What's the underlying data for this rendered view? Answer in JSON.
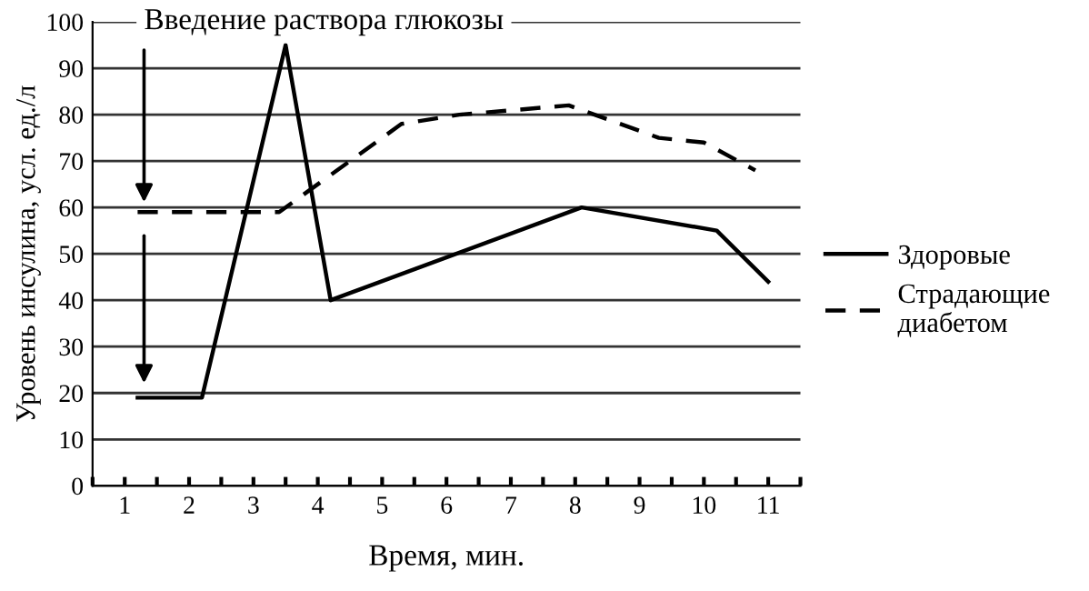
{
  "chart_data": {
    "type": "line",
    "xlabel": "Время, мин.",
    "ylabel": "Уровень инсулина, усл. ед./л",
    "xlim": [
      0.5,
      11.5
    ],
    "ylim": [
      0,
      100
    ],
    "yticks": [
      0,
      10,
      20,
      30,
      40,
      50,
      60,
      70,
      80,
      90,
      100
    ],
    "xticks": [
      {
        "value": 0.5,
        "label": null
      },
      1,
      {
        "value": 1.5,
        "label": null
      },
      2,
      {
        "value": 2.5,
        "label": null
      },
      3,
      {
        "value": 3.5,
        "label": null
      },
      4,
      {
        "value": 4.5,
        "label": null
      },
      5,
      {
        "value": 5.5,
        "label": null
      },
      6,
      {
        "value": 6.5,
        "label": null
      },
      7,
      {
        "value": 7.5,
        "label": null
      },
      8,
      {
        "value": 8.5,
        "label": null
      },
      9,
      {
        "value": 9.5,
        "label": null
      },
      10,
      {
        "value": 10.5,
        "label": null
      },
      11,
      {
        "value": 11.5,
        "label": null
      }
    ],
    "grid": "y",
    "legend": "right",
    "marker": "none",
    "annotations": [
      {
        "text": "Введение раствора глюкозы",
        "x": 1.3,
        "y": 59
      }
    ],
    "series": [
      {
        "name": "Здоровые",
        "color": "#000000",
        "line_style": "solid",
        "x": [
          1.2,
          2.2,
          3.5,
          4.2,
          8.1,
          10.2,
          11.0
        ],
        "values": [
          19,
          19,
          95,
          40,
          60,
          55,
          44
        ]
      },
      {
        "name": "Страдающие диабетом",
        "color": "#000000",
        "line_style": "dashed",
        "x": [
          1.2,
          3.4,
          4.2,
          5.3,
          6.2,
          7.9,
          8.1,
          9.3,
          10.0,
          10.8
        ],
        "values": [
          59,
          59,
          67,
          78,
          80,
          82,
          81,
          75,
          74,
          68
        ]
      }
    ]
  }
}
